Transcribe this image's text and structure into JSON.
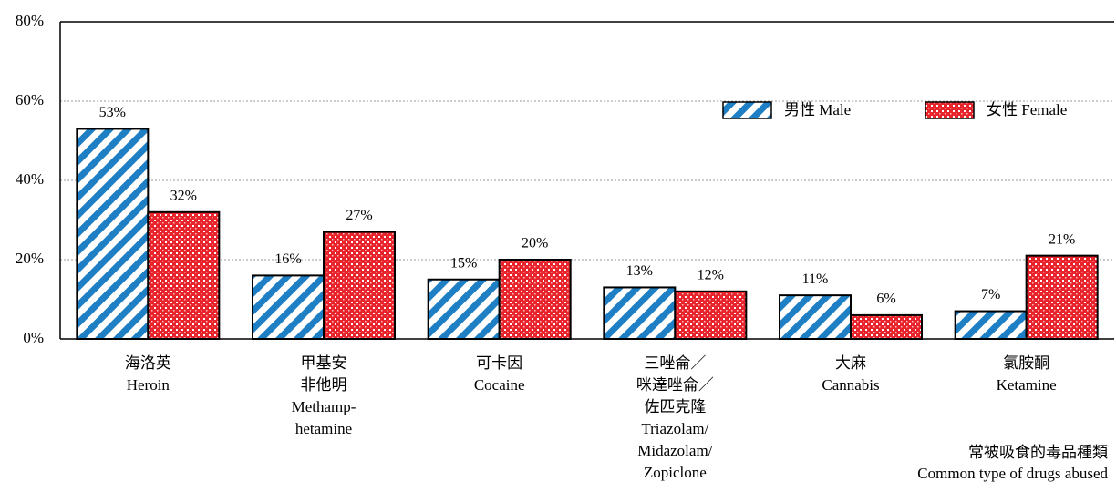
{
  "chart_data": {
    "type": "bar",
    "categories": [
      [
        "海洛英",
        "Heroin"
      ],
      [
        "甲基安",
        "非他明",
        "Methamp-",
        "hetamine"
      ],
      [
        "可卡因",
        "Cocaine"
      ],
      [
        "三唑侖／",
        "咪達唑侖／",
        "佐匹克隆",
        "Triazolam/",
        "Midazolam/",
        "Zopiclone"
      ],
      [
        "大麻",
        "Cannabis"
      ],
      [
        "氯胺酮",
        "Ketamine"
      ]
    ],
    "series": [
      {
        "name": "男性 Male",
        "color": "#1f7fc4",
        "values": [
          53,
          16,
          15,
          13,
          11,
          7
        ],
        "value_labels": [
          "53%",
          "16%",
          "15%",
          "13%",
          "11%",
          "7%"
        ]
      },
      {
        "name": "女性 Female",
        "color": "#e8242c",
        "values": [
          32,
          27,
          20,
          12,
          6,
          21
        ],
        "value_labels": [
          "32%",
          "27%",
          "20%",
          "12%",
          "6%",
          "21%"
        ]
      }
    ],
    "xlabel": [
      "常被吸食的毒品種類",
      "Common type of drugs abused"
    ],
    "ylim": [
      0,
      80
    ],
    "yticks": [
      {
        "value": 0,
        "label": "0%"
      },
      {
        "value": 20,
        "label": "20%"
      },
      {
        "value": 40,
        "label": "40%"
      },
      {
        "value": 60,
        "label": "60%"
      },
      {
        "value": 80,
        "label": "80%"
      }
    ],
    "grid": true,
    "legend": "top-right"
  }
}
